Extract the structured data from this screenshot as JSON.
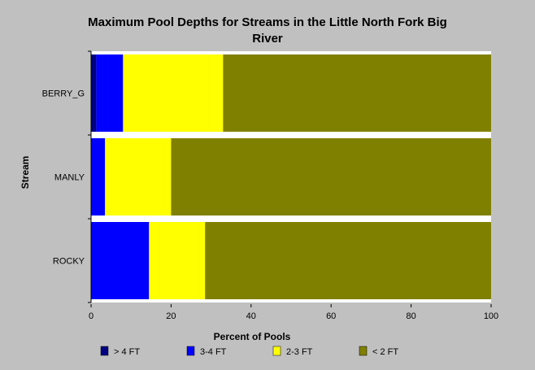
{
  "chart_data": {
    "type": "bar",
    "orientation": "horizontal",
    "stacked": true,
    "title": "Maximum Pool Depths for Streams in the Little North Fork Big River",
    "xlabel": "Percent of Pools",
    "ylabel": "Stream",
    "xlim": [
      0,
      100
    ],
    "x_ticks": [
      0,
      20,
      40,
      60,
      80,
      100
    ],
    "categories": [
      "BERRY_G",
      "MANLY",
      "ROCKY"
    ],
    "series": [
      {
        "name": "> 4 FT",
        "color": "#000080",
        "values": [
          1.3,
          0,
          0
        ]
      },
      {
        "name": "3-4 FT",
        "color": "#0000ff",
        "values": [
          6.7,
          3.5,
          14.5
        ]
      },
      {
        "name": "2-3 FT",
        "color": "#ffff00",
        "values": [
          25.0,
          16.5,
          14.0
        ]
      },
      {
        "name": "< 2 FT",
        "color": "#808000",
        "values": [
          67.0,
          80.0,
          71.5
        ]
      }
    ],
    "grid": false,
    "legend_position": "bottom"
  },
  "colors": {
    "background": "#c0c0c0",
    "plot_background": "#ffffff"
  }
}
